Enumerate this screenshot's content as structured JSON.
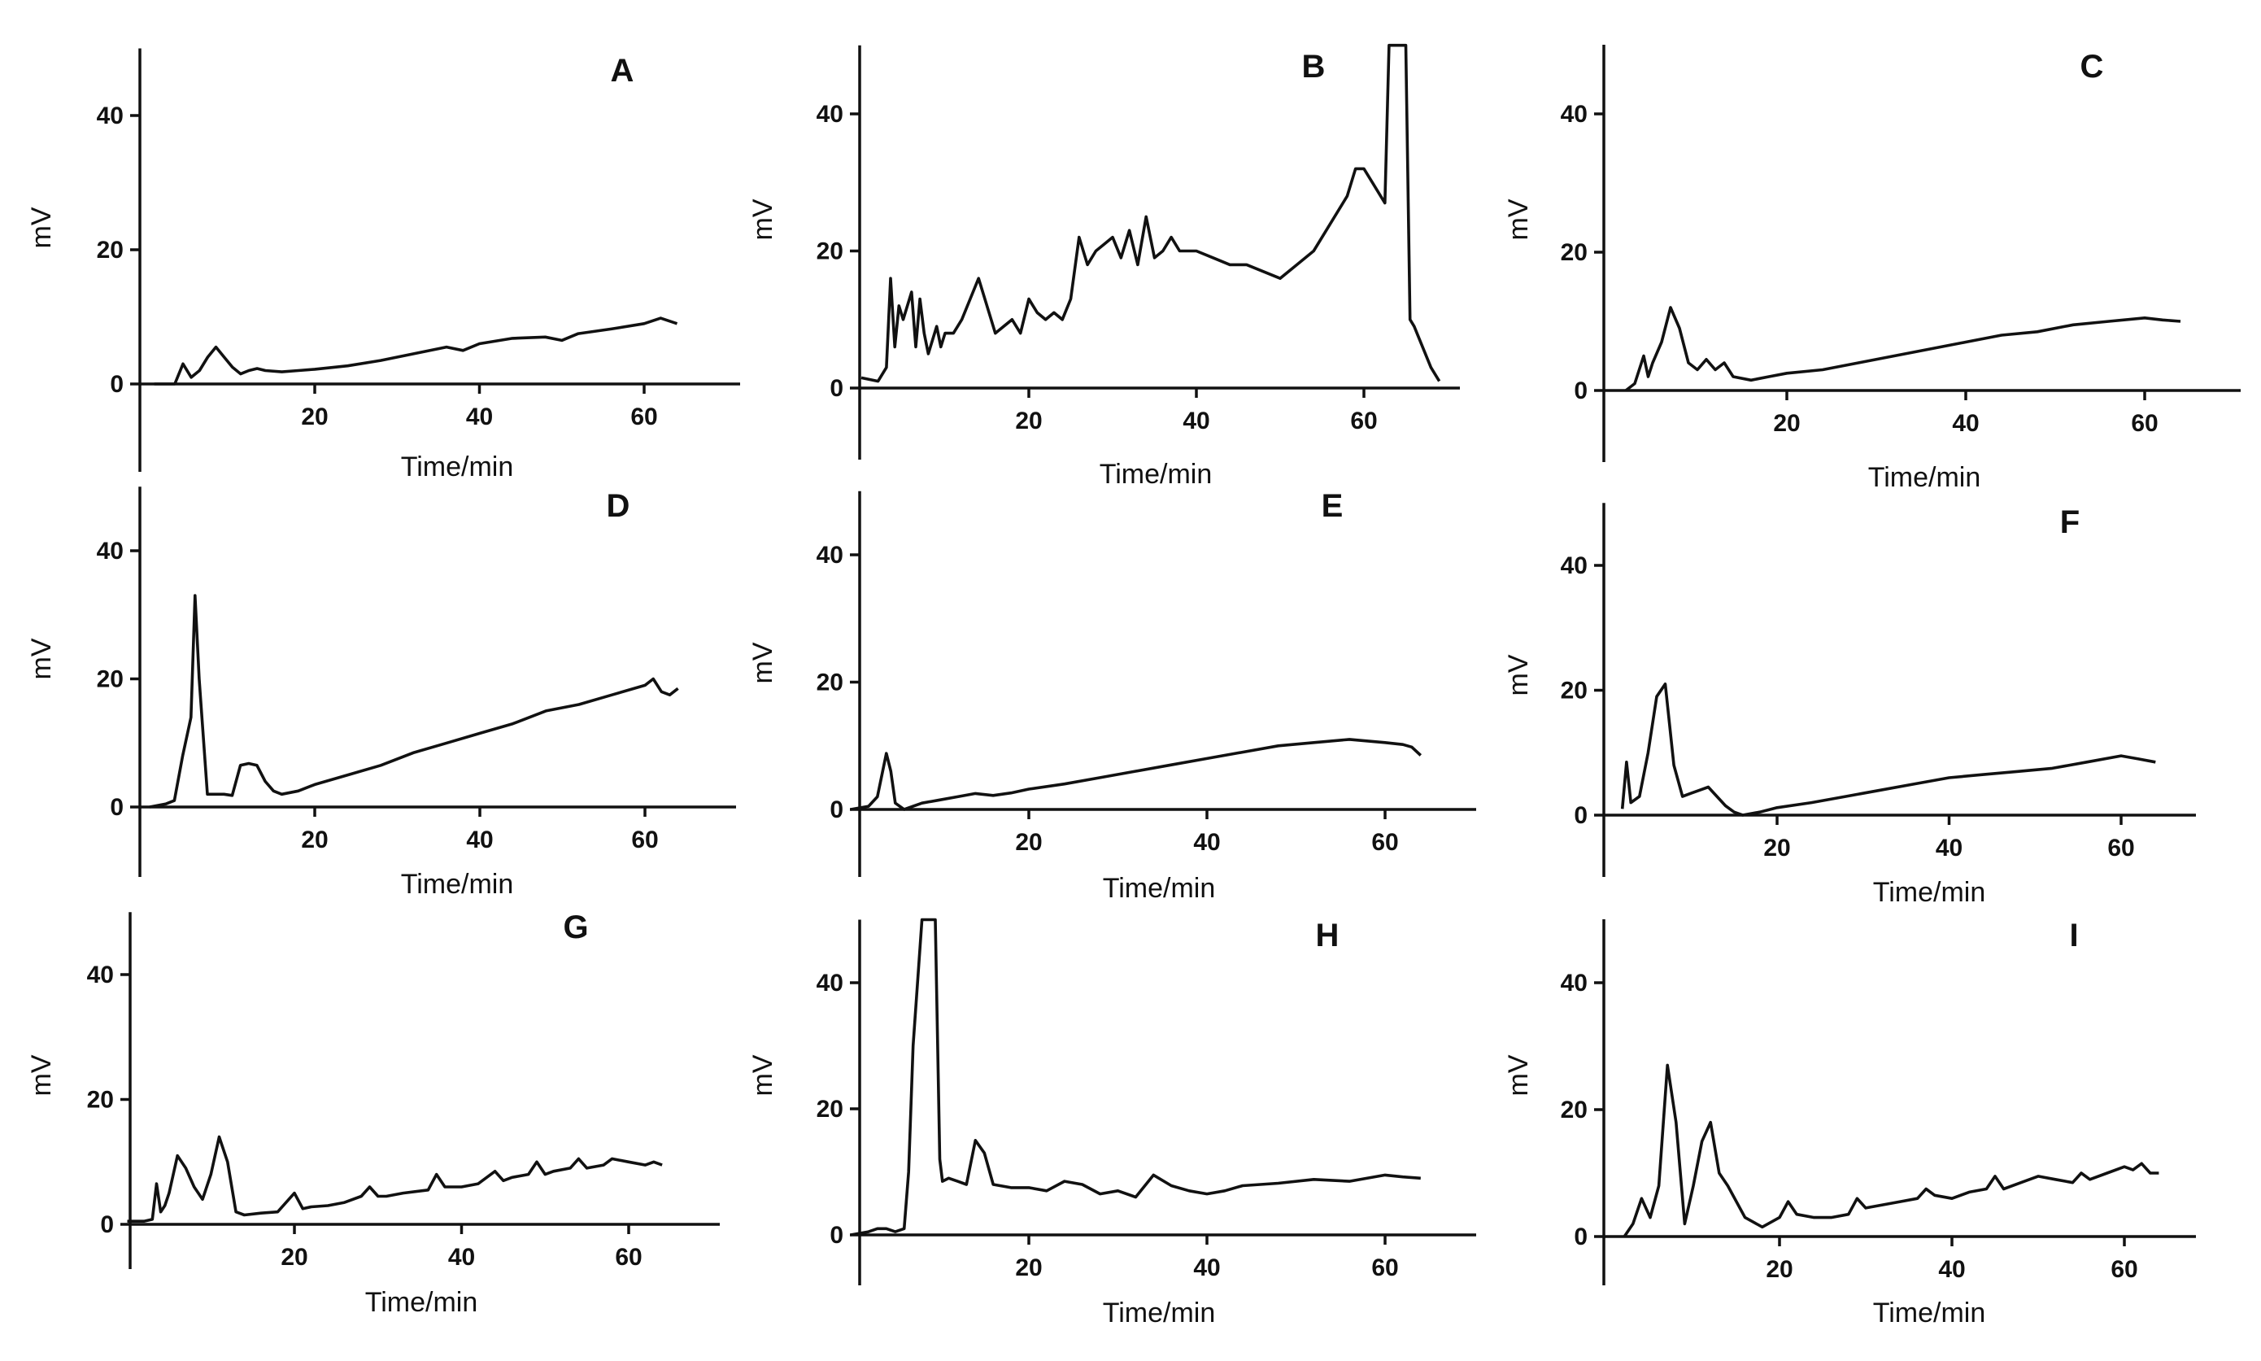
{
  "chart_data": [
    {
      "type": "line",
      "panel": "A",
      "xlabel": "Time/min",
      "ylabel": "mV",
      "xlim": [
        -1,
        70
      ],
      "ylim": [
        -10,
        50
      ],
      "xticks": [
        20,
        40,
        60
      ],
      "yticks": [
        0,
        20,
        40
      ],
      "x": [
        0.5,
        3,
        4,
        5,
        6,
        7,
        8,
        9,
        10,
        11,
        12,
        13,
        14,
        16,
        18,
        20,
        24,
        28,
        32,
        36,
        38,
        40,
        44,
        48,
        50,
        52,
        56,
        60,
        62,
        64
      ],
      "y": [
        0,
        0,
        3,
        1,
        2,
        4,
        5.5,
        4,
        2.5,
        1.5,
        2,
        2.3,
        2,
        1.8,
        2,
        2.2,
        2.7,
        3.5,
        4.5,
        5.5,
        5,
        6,
        6.8,
        7,
        6.5,
        7.5,
        8.2,
        9,
        9.8,
        9
      ]
    },
    {
      "type": "line",
      "panel": "B",
      "xlabel": "Time/min",
      "ylabel": "mV",
      "xlim": [
        0,
        72
      ],
      "ylim": [
        -10,
        50
      ],
      "xticks": [
        20,
        40,
        60
      ],
      "yticks": [
        0,
        20,
        40
      ],
      "x": [
        0,
        2,
        3,
        3.5,
        4,
        4.5,
        5,
        6,
        6.5,
        7,
        7.5,
        8,
        9,
        9.5,
        10,
        11,
        12,
        13,
        14,
        15,
        16,
        17,
        18,
        19,
        20,
        21,
        22,
        23,
        24,
        25,
        26,
        27,
        28,
        29,
        30,
        31,
        32,
        33,
        34,
        35,
        36,
        37,
        38,
        40,
        42,
        44,
        46,
        48,
        50,
        52,
        54,
        56,
        58,
        59,
        60,
        61,
        62,
        62.5,
        63,
        63.5,
        64.5,
        65,
        65.5,
        66,
        67,
        68,
        69
      ],
      "y": [
        1.5,
        1,
        3,
        16,
        6,
        12,
        10,
        14,
        6,
        13,
        8,
        5,
        9,
        6,
        8,
        8,
        10,
        13,
        16,
        12,
        8,
        9,
        10,
        8,
        13,
        11,
        10,
        11,
        10,
        13,
        22,
        18,
        20,
        21,
        22,
        19,
        23,
        18,
        25,
        19,
        20,
        22,
        20,
        20,
        19,
        18,
        18,
        17,
        16,
        18,
        20,
        24,
        28,
        32,
        32,
        30,
        28,
        27,
        50,
        50,
        50,
        50,
        10,
        9,
        6,
        3,
        1
      ]
    },
    {
      "type": "line",
      "panel": "C",
      "xlabel": "Time/min",
      "ylabel": "mV",
      "xlim": [
        -1,
        72
      ],
      "ylim": [
        -10,
        50
      ],
      "xticks": [
        20,
        40,
        60
      ],
      "yticks": [
        0,
        20,
        40
      ],
      "x": [
        2,
        3,
        4,
        4.5,
        5,
        6,
        7,
        8,
        9,
        10,
        11,
        12,
        13,
        14,
        16,
        18,
        20,
        24,
        28,
        32,
        36,
        40,
        44,
        48,
        52,
        56,
        60,
        62,
        64
      ],
      "y": [
        0,
        1,
        5,
        2,
        4,
        7,
        12,
        9,
        4,
        3,
        4.5,
        3,
        4,
        2,
        1.5,
        2,
        2.5,
        3,
        4,
        5,
        6,
        7,
        8,
        8.5,
        9.5,
        10,
        10.5,
        10.2,
        10
      ]
    },
    {
      "type": "line",
      "panel": "D",
      "xlabel": "Time/min",
      "ylabel": "mV",
      "xlim": [
        0,
        68
      ],
      "ylim": [
        -10,
        50
      ],
      "xticks": [
        20,
        40,
        60
      ],
      "yticks": [
        0,
        20,
        40
      ],
      "x": [
        0,
        2,
        3,
        4,
        5,
        5.5,
        6,
        7,
        8,
        9,
        10,
        11,
        12,
        13,
        14,
        15,
        16,
        18,
        20,
        24,
        28,
        32,
        36,
        40,
        44,
        48,
        52,
        56,
        60,
        61,
        62,
        63,
        64
      ],
      "y": [
        0,
        0.5,
        1,
        8,
        14,
        33,
        20,
        2,
        2,
        2,
        1.8,
        6.5,
        6.8,
        6.5,
        4,
        2.5,
        2,
        2.5,
        3.5,
        5,
        6.5,
        8.5,
        10,
        11.5,
        13,
        15,
        16,
        17.5,
        19,
        20,
        18,
        17.5,
        18.5
      ]
    },
    {
      "type": "line",
      "panel": "E",
      "xlabel": "Time/min",
      "ylabel": "mV",
      "xlim": [
        0,
        70
      ],
      "ylim": [
        -10,
        50
      ],
      "xticks": [
        20,
        40,
        60
      ],
      "yticks": [
        0,
        20,
        40
      ],
      "x": [
        0,
        2,
        3,
        4,
        4.5,
        5,
        6,
        8,
        10,
        12,
        14,
        16,
        18,
        20,
        24,
        28,
        32,
        36,
        40,
        44,
        48,
        52,
        56,
        60,
        62,
        63,
        64
      ],
      "y": [
        0,
        0.5,
        2,
        8.8,
        6,
        1,
        0,
        1,
        1.5,
        2,
        2.5,
        2.2,
        2.6,
        3.2,
        4,
        5,
        6,
        7,
        8,
        9,
        10,
        10.5,
        11,
        10.5,
        10.2,
        9.8,
        8.5
      ]
    },
    {
      "type": "line",
      "panel": "F",
      "xlabel": "Time/min",
      "ylabel": "mV",
      "xlim": [
        -2,
        72
      ],
      "ylim": [
        -10,
        50
      ],
      "xticks": [
        20,
        40,
        60
      ],
      "yticks": [
        0,
        20,
        40
      ],
      "x": [
        2,
        2.5,
        3,
        4,
        5,
        6,
        7,
        8,
        9,
        10,
        11,
        12,
        13,
        14,
        15,
        16,
        18,
        20,
        24,
        28,
        32,
        36,
        40,
        44,
        48,
        52,
        56,
        60,
        62,
        64
      ],
      "y": [
        1,
        8.5,
        2,
        3,
        10,
        19,
        21,
        8,
        3,
        3.5,
        4,
        4.5,
        3,
        1.5,
        0.5,
        0,
        0.5,
        1.2,
        2,
        3,
        4,
        5,
        6,
        6.5,
        7,
        7.5,
        8.5,
        9.5,
        9,
        8.5
      ]
    },
    {
      "type": "line",
      "panel": "G",
      "xlabel": "Time/min",
      "ylabel": "mV",
      "xlim": [
        -1,
        70
      ],
      "ylim": [
        -10,
        50
      ],
      "xticks": [
        20,
        40,
        60
      ],
      "yticks": [
        0,
        20,
        40
      ],
      "x": [
        0,
        2,
        3,
        3.5,
        4,
        4.5,
        5,
        6,
        7,
        8,
        9,
        10,
        11,
        12,
        13,
        14,
        16,
        18,
        20,
        21,
        22,
        24,
        26,
        28,
        29,
        30,
        31,
        33,
        36,
        37,
        38,
        40,
        42,
        44,
        45,
        46,
        48,
        49,
        50,
        51,
        53,
        54,
        55,
        57,
        58,
        60,
        62,
        63,
        64
      ],
      "y": [
        0.5,
        0.5,
        0.8,
        6.5,
        2,
        3,
        5,
        11,
        9,
        6,
        4,
        8,
        14,
        10,
        2,
        1.5,
        1.8,
        2,
        5,
        2.5,
        2.8,
        3,
        3.5,
        4.5,
        6,
        4.5,
        4.5,
        5,
        5.5,
        8,
        6,
        6,
        6.5,
        8.5,
        7,
        7.5,
        8,
        10,
        8,
        8.5,
        9,
        10.5,
        9,
        9.5,
        10.5,
        10,
        9.5,
        10,
        9.5
      ]
    },
    {
      "type": "line",
      "panel": "H",
      "xlabel": "Time/min",
      "ylabel": "mV",
      "xlim": [
        0,
        72
      ],
      "ylim": [
        -10,
        50
      ],
      "xticks": [
        20,
        40,
        60
      ],
      "yticks": [
        0,
        20,
        40
      ],
      "x": [
        0,
        2,
        3,
        4,
        5,
        6,
        6.5,
        7,
        8,
        8.5,
        9.5,
        10,
        10.3,
        11,
        12,
        13,
        14,
        15,
        16,
        18,
        20,
        22,
        24,
        26,
        28,
        30,
        32,
        34,
        36,
        38,
        40,
        42,
        44,
        48,
        52,
        56,
        60,
        62,
        64
      ],
      "y": [
        0,
        0.5,
        1,
        1,
        0.5,
        1,
        10,
        30,
        50,
        50,
        50,
        12,
        8.5,
        9,
        8.5,
        8,
        15,
        13,
        8,
        7.5,
        7.5,
        7,
        8.5,
        8,
        6.5,
        7,
        6,
        9.5,
        7.8,
        7,
        6.5,
        7,
        7.8,
        8.2,
        8.8,
        8.5,
        9.5,
        9.2,
        9
      ]
    },
    {
      "type": "line",
      "panel": "I",
      "xlabel": "Time/min",
      "ylabel": "mV",
      "xlim": [
        -2,
        72
      ],
      "ylim": [
        -10,
        50
      ],
      "xticks": [
        20,
        40,
        60
      ],
      "yticks": [
        0,
        20,
        40
      ],
      "x": [
        2,
        3,
        4,
        5,
        6,
        7,
        8,
        9,
        10,
        11,
        12,
        13,
        14,
        16,
        18,
        20,
        21,
        22,
        24,
        26,
        28,
        29,
        30,
        32,
        34,
        36,
        37,
        38,
        40,
        42,
        44,
        45,
        46,
        48,
        50,
        52,
        54,
        55,
        56,
        58,
        60,
        61,
        62,
        63,
        64
      ],
      "y": [
        0,
        2,
        6,
        3,
        8,
        27,
        18,
        2,
        8,
        15,
        18,
        10,
        8,
        3,
        1.5,
        3,
        5.5,
        3.5,
        3,
        3,
        3.5,
        6,
        4.5,
        5,
        5.5,
        6,
        7.5,
        6.5,
        6,
        7,
        7.5,
        9.5,
        7.5,
        8.5,
        9.5,
        9,
        8.5,
        10,
        9,
        10,
        11,
        10.5,
        11.5,
        10,
        10
      ]
    }
  ]
}
